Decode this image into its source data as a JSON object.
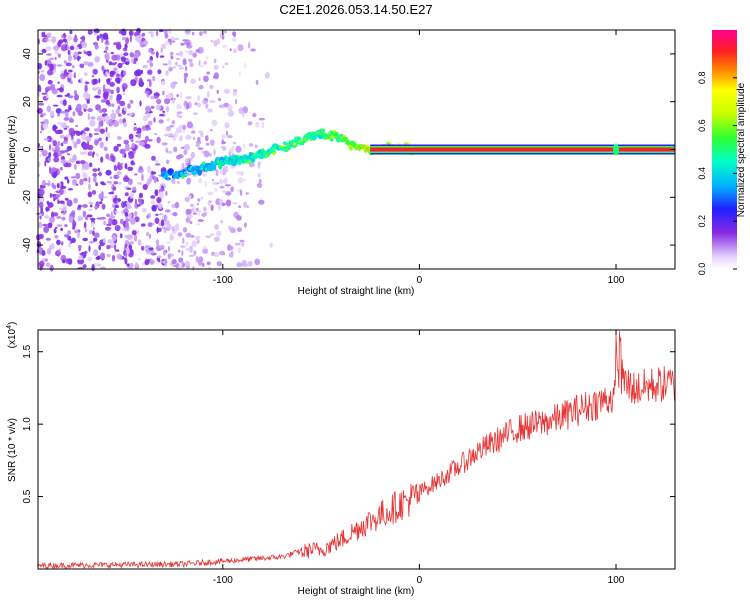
{
  "title": "C2E1.2026.053.14.50.E27",
  "chart_data": [
    {
      "type": "heatmap",
      "name": "spectrogram",
      "xlabel": "Height of straight line (km)",
      "ylabel": "Frequency (Hz)",
      "xlim": [
        -194,
        130
      ],
      "ylim": [
        -50,
        50
      ],
      "xticks": [
        -100,
        0,
        100
      ],
      "yticks": [
        -40,
        -20,
        0,
        20,
        40
      ],
      "colorbar": {
        "label": "Normalized spectral amplitude",
        "ticks": [
          0.0,
          0.2,
          0.4,
          0.6,
          0.8
        ],
        "range": [
          0,
          1
        ]
      },
      "carrier": {
        "x_start": -25,
        "x_end": 130,
        "frequency_hz": 0,
        "amplitude": 1.0
      },
      "ridge": {
        "x": [
          -130,
          -120,
          -110,
          -100,
          -90,
          -80,
          -70,
          -60,
          -55,
          -50,
          -45,
          -40,
          -35,
          -30,
          -25,
          -20,
          -15,
          -10,
          -5,
          0
        ],
        "frequency_hz": [
          -11,
          -10,
          -8,
          -5,
          -4,
          -2,
          1,
          4,
          6,
          7,
          6,
          5,
          2,
          1,
          0,
          0,
          1,
          1,
          0,
          0
        ],
        "amplitude": [
          0.4,
          0.45,
          0.45,
          0.5,
          0.55,
          0.55,
          0.6,
          0.6,
          0.65,
          0.6,
          0.65,
          0.7,
          0.75,
          0.8,
          0.85,
          0.85,
          0.85,
          0.9,
          0.9,
          0.95
        ]
      },
      "noise_region_x": [
        -194,
        -130
      ],
      "spike": {
        "x": 100,
        "frequency_hz": 0
      }
    },
    {
      "type": "line",
      "name": "snr",
      "xlabel": "Height of straight line (km)",
      "ylabel": "SNR (10 * v/v)",
      "multiplier": "(x10",
      "multiplier_exp": "4",
      "xlim": [
        -194,
        130
      ],
      "ylim": [
        0,
        1.65
      ],
      "xticks": [
        -100,
        0,
        100
      ],
      "yticks": [
        0.5,
        1.0,
        1.5
      ],
      "ytick_labels": [
        "0.5",
        "1.0",
        "1.5"
      ],
      "line_color": "#e83232",
      "trend": {
        "x": [
          -194,
          -150,
          -120,
          -100,
          -80,
          -70,
          -60,
          -55,
          -50,
          -40,
          -30,
          -20,
          -10,
          0,
          10,
          20,
          30,
          40,
          50,
          60,
          70,
          80,
          90,
          100,
          102,
          110,
          120,
          130
        ],
        "y": [
          0.03,
          0.035,
          0.04,
          0.06,
          0.08,
          0.09,
          0.13,
          0.15,
          0.15,
          0.22,
          0.32,
          0.4,
          0.48,
          0.55,
          0.63,
          0.73,
          0.84,
          0.92,
          1.0,
          1.03,
          1.07,
          1.13,
          1.18,
          1.23,
          1.35,
          1.28,
          1.31,
          1.32
        ]
      }
    }
  ]
}
